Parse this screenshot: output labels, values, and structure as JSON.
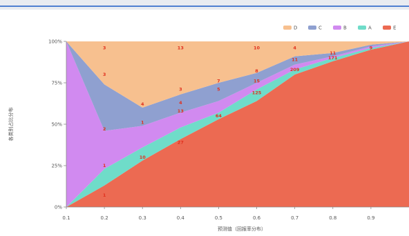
{
  "chart_data": {
    "type": "area",
    "stacked": "percent",
    "xlabel": "预测值（回报率分布）",
    "ylabel": "各类别占比分布",
    "x": [
      0.1,
      0.2,
      0.3,
      0.4,
      0.5,
      0.6,
      0.7,
      0.8,
      0.9,
      1.0
    ],
    "x_ticks": [
      "0.1",
      "0.2",
      "0.3",
      "0.4",
      "0.5",
      "0.6",
      "0.7",
      "0.8",
      "0.9"
    ],
    "y_ticks": [
      "0%",
      "25%",
      "50%",
      "75%",
      "100%"
    ],
    "ylim": [
      0,
      100
    ],
    "grid": false,
    "legend_position": "top-right",
    "series": [
      {
        "name": "E",
        "color": "#ec6a52",
        "cumulative": [
          0,
          13,
          28,
          41,
          53,
          64,
          80,
          88,
          95,
          100
        ]
      },
      {
        "name": "A",
        "color": "#6fdcc9",
        "cumulative": [
          0,
          23,
          36,
          48,
          57,
          71,
          83,
          90,
          96,
          100
        ]
      },
      {
        "name": "B",
        "color": "#d18af0",
        "cumulative": [
          100,
          46,
          49,
          57,
          64,
          75,
          86,
          91,
          97,
          100
        ]
      },
      {
        "name": "C",
        "color": "#8fa0d0",
        "cumulative": [
          100,
          74,
          60,
          68,
          75,
          81,
          91,
          93,
          98,
          100
        ]
      },
      {
        "name": "D",
        "color": "#f7c08f",
        "cumulative": [
          100,
          100,
          100,
          100,
          100,
          100,
          100,
          100,
          100,
          100
        ]
      }
    ],
    "labels": [
      {
        "x": 0.2,
        "y": 7,
        "text": "1"
      },
      {
        "x": 0.3,
        "y": 30,
        "text": "10"
      },
      {
        "x": 0.4,
        "y": 39,
        "text": "27"
      },
      {
        "x": 0.5,
        "y": 55,
        "text": "64"
      },
      {
        "x": 0.6,
        "y": 69,
        "text": "125"
      },
      {
        "x": 0.7,
        "y": 83,
        "text": "209"
      },
      {
        "x": 0.8,
        "y": 90,
        "text": "171"
      },
      {
        "x": 0.9,
        "y": 96,
        "text": "9"
      },
      {
        "x": 0.2,
        "y": 25,
        "text": "1"
      },
      {
        "x": 0.3,
        "y": 51,
        "text": "1"
      },
      {
        "x": 0.4,
        "y": 58,
        "text": "13"
      },
      {
        "x": 0.6,
        "y": 76,
        "text": "15"
      },
      {
        "x": 0.7,
        "y": 89,
        "text": "11"
      },
      {
        "x": 0.2,
        "y": 47,
        "text": "2"
      },
      {
        "x": 0.4,
        "y": 63,
        "text": "4"
      },
      {
        "x": 0.5,
        "y": 71,
        "text": "5"
      },
      {
        "x": 0.6,
        "y": 82,
        "text": "8"
      },
      {
        "x": 0.8,
        "y": 93,
        "text": "11"
      },
      {
        "x": 0.2,
        "y": 80,
        "text": "3"
      },
      {
        "x": 0.3,
        "y": 62,
        "text": "4"
      },
      {
        "x": 0.4,
        "y": 71,
        "text": "3"
      },
      {
        "x": 0.5,
        "y": 76,
        "text": "7"
      },
      {
        "x": 0.2,
        "y": 96,
        "text": "3"
      },
      {
        "x": 0.4,
        "y": 96,
        "text": "13"
      },
      {
        "x": 0.6,
        "y": 96,
        "text": "10"
      },
      {
        "x": 0.7,
        "y": 96,
        "text": "4"
      }
    ]
  }
}
